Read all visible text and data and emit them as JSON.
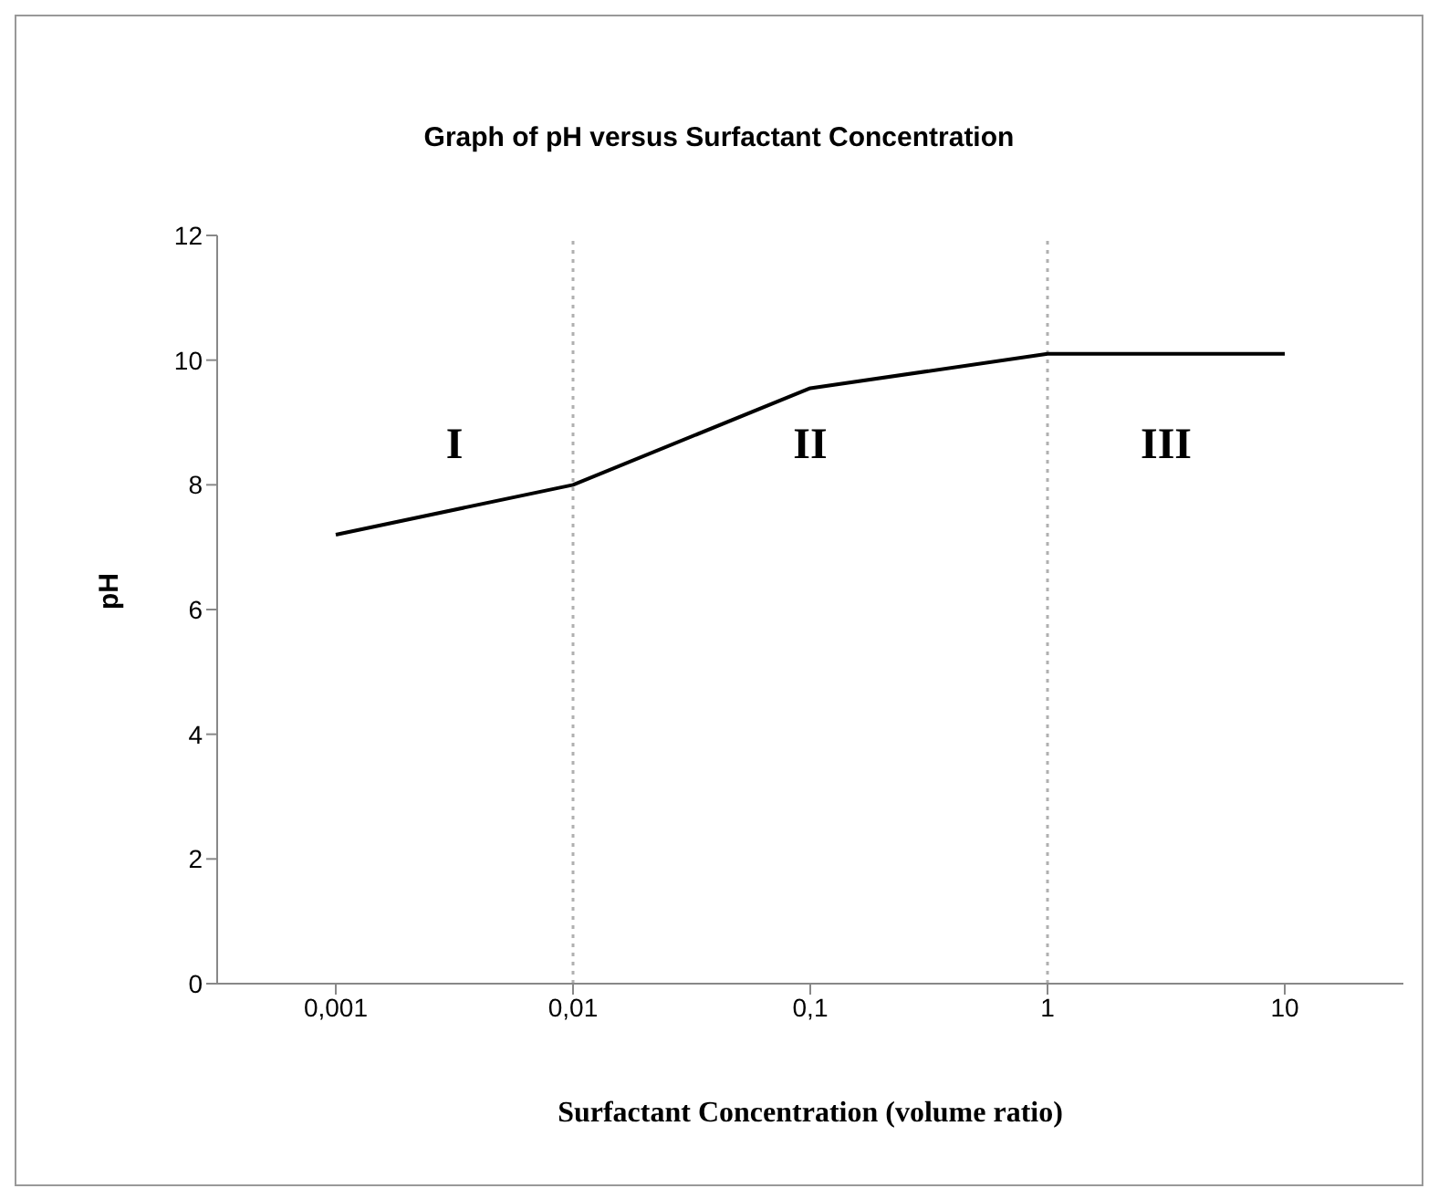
{
  "chart_data": {
    "type": "line",
    "title": "Graph of pH versus Surfactant Concentration",
    "xlabel": "Surfactant Concentration (volume ratio)",
    "ylabel": "pH",
    "categories": [
      "0,001",
      "0,01",
      "0,1",
      "1",
      "10"
    ],
    "series": [
      {
        "color": "#000000",
        "values": [
          7.2,
          8.0,
          9.55,
          10.1,
          10.1
        ]
      }
    ],
    "ylim": [
      0,
      12
    ],
    "yticks": [
      0,
      2,
      4,
      6,
      8,
      10,
      12
    ],
    "grid": false,
    "legend": false,
    "marker": "none",
    "line_style": "solid",
    "ref_lines": [
      {
        "axis": "x",
        "value": "0,01",
        "color": "#b0b0b0",
        "line_style": "dotted"
      },
      {
        "axis": "x",
        "value": "1",
        "color": "#b0b0b0",
        "line_style": "dotted"
      }
    ],
    "annotations": [
      "I",
      "II",
      "III"
    ]
  }
}
